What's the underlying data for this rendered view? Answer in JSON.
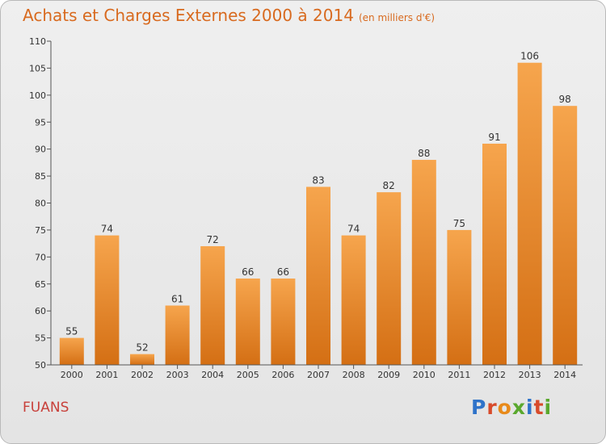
{
  "header": {
    "title": "Achats et Charges Externes 2000 à 2014",
    "subtitle": "(en milliers d'€)"
  },
  "footer": {
    "commune": "FUANS",
    "brand": "Proxiti"
  },
  "colors": {
    "title": "#d86a1f",
    "commune": "#c8403a",
    "bar_top": "#f6a54d",
    "bar_bottom": "#d46f14",
    "logo": [
      "#2f73c9",
      "#d84b2b",
      "#e88a1a",
      "#5aa82d",
      "#2f73c9",
      "#d84b2b",
      "#5aa82d"
    ]
  },
  "chart_data": {
    "type": "bar",
    "title": "Achats et Charges Externes 2000 à 2014",
    "subtitle": "(en milliers d'€)",
    "categories": [
      "2000",
      "2001",
      "2002",
      "2003",
      "2004",
      "2005",
      "2006",
      "2007",
      "2008",
      "2009",
      "2010",
      "2011",
      "2012",
      "2013",
      "2014"
    ],
    "values": [
      55,
      74,
      52,
      61,
      72,
      66,
      66,
      83,
      74,
      82,
      88,
      75,
      91,
      106,
      98
    ],
    "ylim": [
      50,
      110
    ],
    "yticks": [
      50,
      55,
      60,
      65,
      70,
      75,
      80,
      85,
      90,
      95,
      100,
      105,
      110
    ],
    "grid": false,
    "legend": "none",
    "data_labels": true
  }
}
